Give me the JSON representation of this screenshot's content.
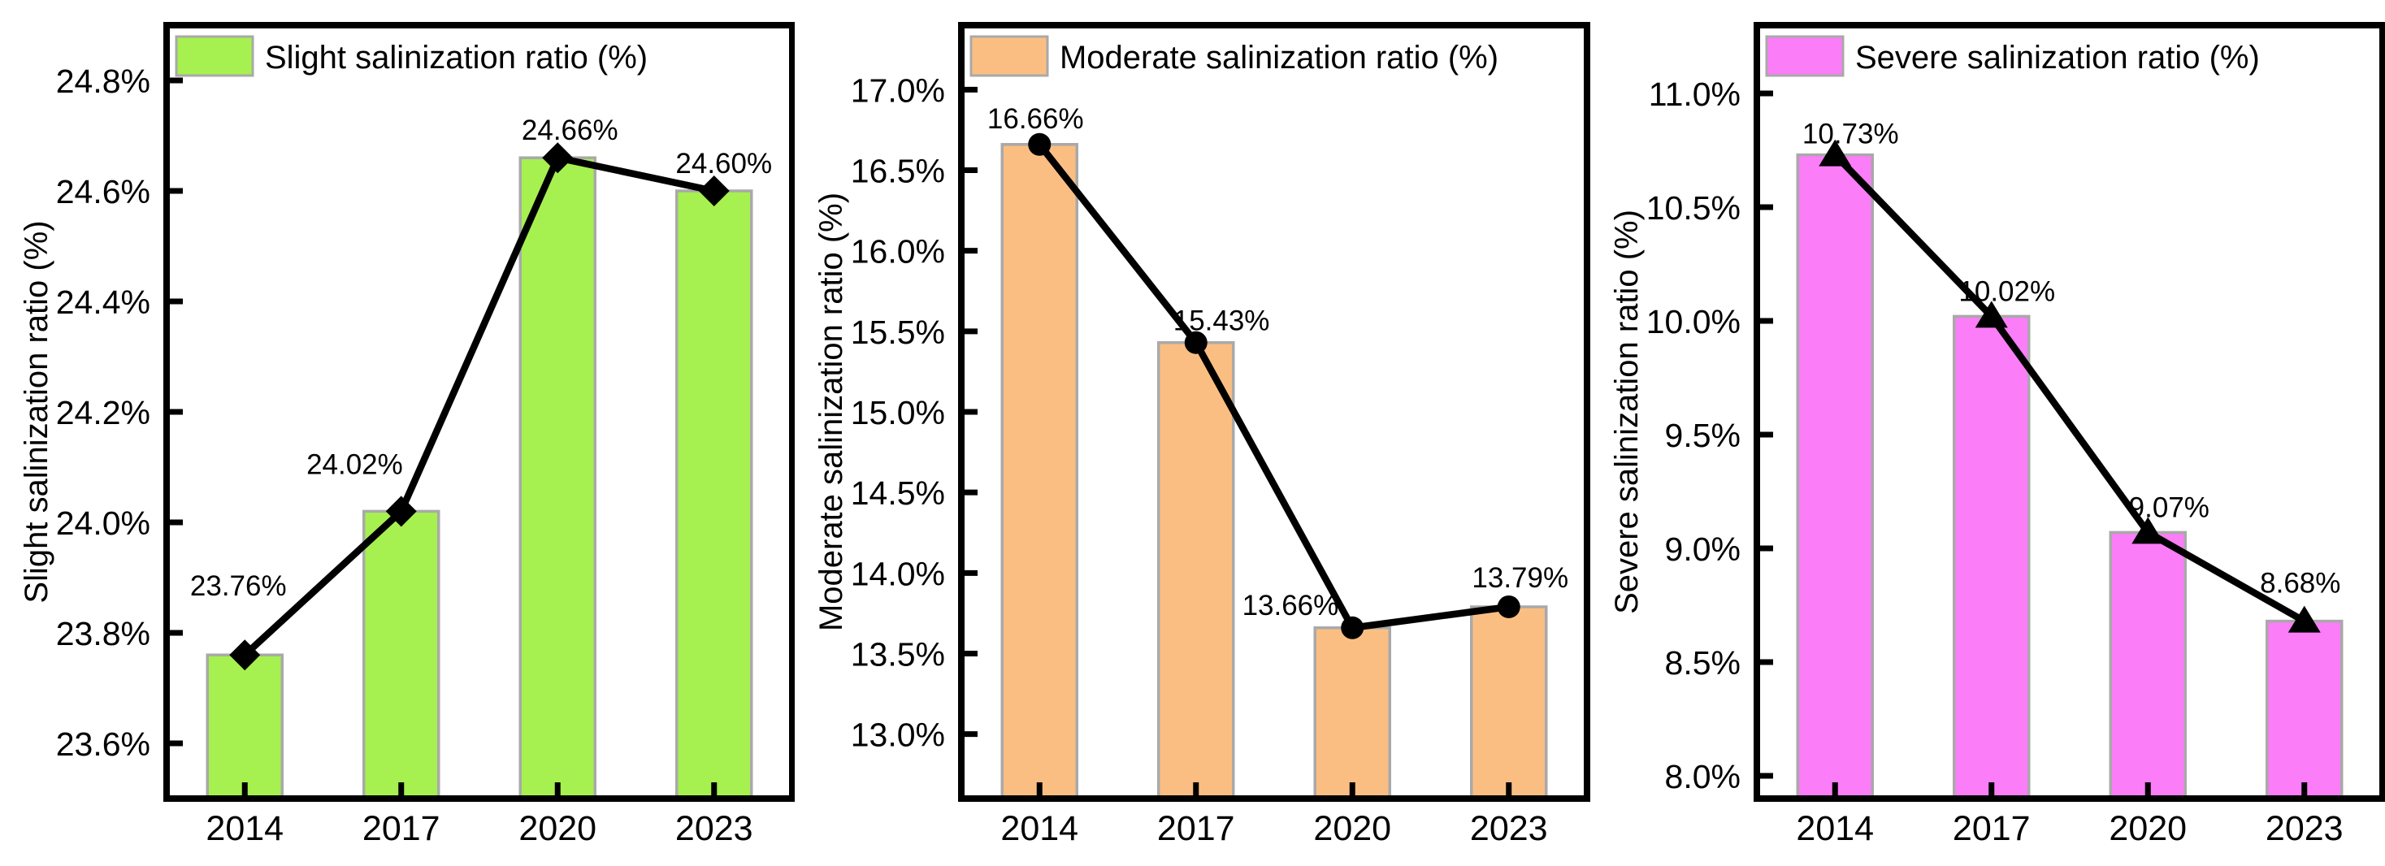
{
  "figure": {
    "background": "#FFFFFF",
    "axis_color": "#000000",
    "line_color": "#000000",
    "marker_color": "#000000",
    "bar_edge_color": "#A9A9A9"
  },
  "chart_data": [
    {
      "type": "bar+line",
      "legend": "Slight salinization ratio (%)",
      "ylabel": "Slight salinization ratio (%)",
      "categories": [
        "2014",
        "2017",
        "2020",
        "2023"
      ],
      "values": [
        23.76,
        24.02,
        24.66,
        24.6
      ],
      "value_labels": [
        "23.76%",
        "24.02%",
        "24.66%",
        "24.60%"
      ],
      "ylim": [
        23.5,
        24.9
      ],
      "yticks": [
        23.6,
        23.8,
        24.0,
        24.2,
        24.4,
        24.6,
        24.8
      ],
      "ytick_labels": [
        "23.6%",
        "23.8%",
        "24.0%",
        "24.2%",
        "24.4%",
        "24.6%",
        "24.8%"
      ],
      "bar_color": "#A6F14F",
      "marker": "diamond",
      "legend_position": "top-left-inside",
      "grid": false
    },
    {
      "type": "bar+line",
      "legend": "Moderate salinization ratio (%)",
      "ylabel": "Moderate salinization ratio (%)",
      "categories": [
        "2014",
        "2017",
        "2020",
        "2023"
      ],
      "values": [
        16.66,
        15.43,
        13.66,
        13.79
      ],
      "value_labels": [
        "16.66%",
        "15.43%",
        "13.66%",
        "13.79%"
      ],
      "ylim": [
        12.6,
        17.4
      ],
      "yticks": [
        13.0,
        13.5,
        14.0,
        14.5,
        15.0,
        15.5,
        16.0,
        16.5,
        17.0
      ],
      "ytick_labels": [
        "13.0%",
        "13.5%",
        "14.0%",
        "14.5%",
        "15.0%",
        "15.5%",
        "16.0%",
        "16.5%",
        "17.0%"
      ],
      "bar_color": "#FBBE82",
      "marker": "circle",
      "legend_position": "top-left-inside",
      "grid": false
    },
    {
      "type": "bar+line",
      "legend": "Severe salinization ratio (%)",
      "ylabel": "Severe salinization ratio (%)",
      "categories": [
        "2014",
        "2017",
        "2020",
        "2023"
      ],
      "values": [
        10.73,
        10.02,
        9.07,
        8.68
      ],
      "value_labels": [
        "10.73%",
        "10.02%",
        "9.07%",
        "8.68%"
      ],
      "ylim": [
        7.9,
        11.3
      ],
      "yticks": [
        8.0,
        8.5,
        9.0,
        9.5,
        10.0,
        10.5,
        11.0
      ],
      "ytick_labels": [
        "8.0%",
        "8.5%",
        "9.0%",
        "9.5%",
        "10.0%",
        "10.5%",
        "11.0%"
      ],
      "bar_color": "#FB7DF8",
      "marker": "triangle-up",
      "legend_position": "top-left-inside",
      "grid": false
    }
  ]
}
